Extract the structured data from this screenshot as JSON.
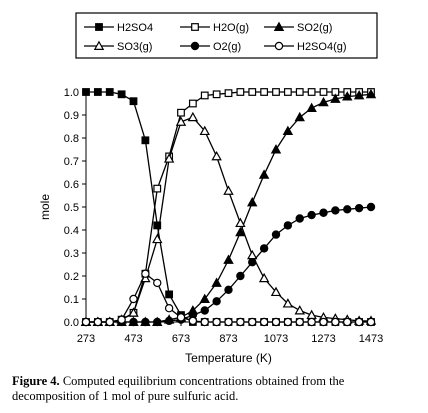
{
  "chart_data": {
    "type": "line",
    "xlabel": "Temperature (K)",
    "ylabel": "mole",
    "xlim": [
      273,
      1473
    ],
    "ylim": [
      0,
      1.0
    ],
    "xticks": [
      273,
      473,
      673,
      873,
      1073,
      1273,
      1473
    ],
    "yticks": [
      0.0,
      0.1,
      0.2,
      0.3,
      0.4,
      0.5,
      0.6,
      0.7,
      0.8,
      0.9,
      1.0
    ],
    "ytick_labels": [
      "0.0",
      "0.1",
      "0.2",
      "0.3",
      "0.4",
      "0.5",
      "0.6",
      "0.7",
      "0.8",
      "0.9",
      "1.0"
    ],
    "grid": false,
    "legend_position": "top",
    "x": [
      273,
      323,
      373,
      423,
      473,
      523,
      573,
      623,
      673,
      723,
      773,
      823,
      873,
      923,
      973,
      1023,
      1073,
      1123,
      1173,
      1223,
      1273,
      1323,
      1373,
      1423,
      1473
    ],
    "series": [
      {
        "name": "H2SO4",
        "marker": "square-filled",
        "values": [
          1.0,
          1.0,
          1.0,
          0.99,
          0.96,
          0.79,
          0.42,
          0.12,
          0.03,
          0.0,
          0.0,
          0.0,
          0.0,
          0.0,
          0.0,
          0.0,
          0.0,
          0.0,
          0.0,
          0.0,
          0.0,
          0.0,
          0.0,
          0.0,
          0.0
        ]
      },
      {
        "name": "H2O(g)",
        "marker": "square-open",
        "values": [
          0.0,
          0.0,
          0.0,
          0.01,
          0.04,
          0.21,
          0.58,
          0.72,
          0.91,
          0.95,
          0.985,
          0.99,
          0.995,
          1.0,
          1.0,
          1.0,
          1.0,
          1.0,
          1.0,
          1.0,
          1.0,
          1.0,
          1.0,
          1.0,
          1.0
        ]
      },
      {
        "name": "SO2(g)",
        "marker": "triangle-filled",
        "values": [
          0.0,
          0.0,
          0.0,
          0.0,
          0.0,
          0.0,
          0.0,
          0.01,
          0.02,
          0.05,
          0.1,
          0.17,
          0.27,
          0.39,
          0.52,
          0.64,
          0.75,
          0.83,
          0.89,
          0.93,
          0.955,
          0.97,
          0.98,
          0.985,
          0.99
        ]
      },
      {
        "name": "SO3(g)",
        "marker": "triangle-open",
        "values": [
          0.0,
          0.0,
          0.0,
          0.01,
          0.04,
          0.19,
          0.36,
          0.71,
          0.87,
          0.89,
          0.83,
          0.72,
          0.57,
          0.43,
          0.29,
          0.19,
          0.13,
          0.08,
          0.05,
          0.03,
          0.02,
          0.015,
          0.01,
          0.005,
          0.005
        ]
      },
      {
        "name": "O2(g)",
        "marker": "circle-filled",
        "values": [
          0.0,
          0.0,
          0.0,
          0.0,
          0.0,
          0.0,
          0.0,
          0.005,
          0.01,
          0.03,
          0.05,
          0.09,
          0.14,
          0.2,
          0.26,
          0.32,
          0.38,
          0.42,
          0.45,
          0.465,
          0.475,
          0.485,
          0.49,
          0.495,
          0.5
        ]
      },
      {
        "name": "H2SO4(g)",
        "marker": "circle-open",
        "values": [
          0.0,
          0.0,
          0.0,
          0.01,
          0.1,
          0.21,
          0.17,
          0.06,
          0.02,
          0.005,
          0.0,
          0.0,
          0.0,
          0.0,
          0.0,
          0.0,
          0.0,
          0.0,
          0.0,
          0.0,
          0.0,
          0.0,
          0.0,
          0.0,
          0.0
        ]
      }
    ]
  },
  "caption": {
    "label": "Figure 4.",
    "text": "Computed equilibrium concentrations obtained from the decomposition of 1 mol of pure sulfuric acid."
  }
}
